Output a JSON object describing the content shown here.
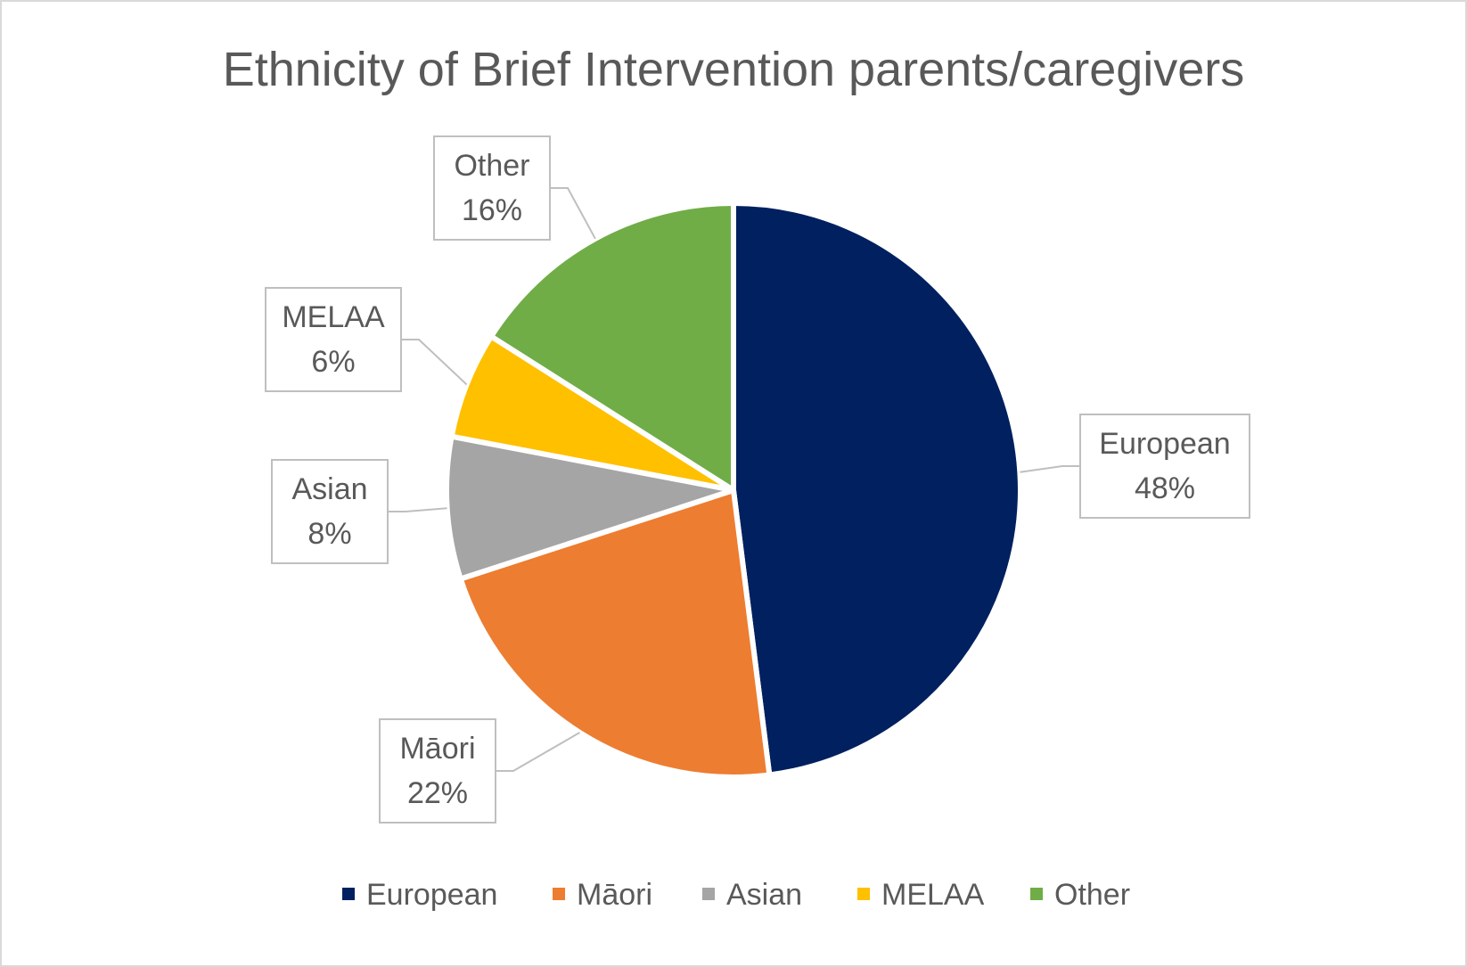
{
  "chart_data": {
    "type": "pie",
    "title": "Ethnicity of Brief Intervention parents/caregivers",
    "slices": [
      {
        "name": "European",
        "value": 48,
        "label": "48%",
        "color": "#002060"
      },
      {
        "name": "Māori",
        "value": 22,
        "label": "22%",
        "color": "#ED7D31"
      },
      {
        "name": "Asian",
        "value": 8,
        "label": "8%",
        "color": "#A5A5A5"
      },
      {
        "name": "MELAA",
        "value": 6,
        "label": "6%",
        "color": "#FFC000"
      },
      {
        "name": "Other",
        "value": 16,
        "label": "16%",
        "color": "#70AD47"
      }
    ],
    "legend": {
      "position": "bottom"
    },
    "start": "12 o'clock",
    "direction": "clockwise"
  }
}
